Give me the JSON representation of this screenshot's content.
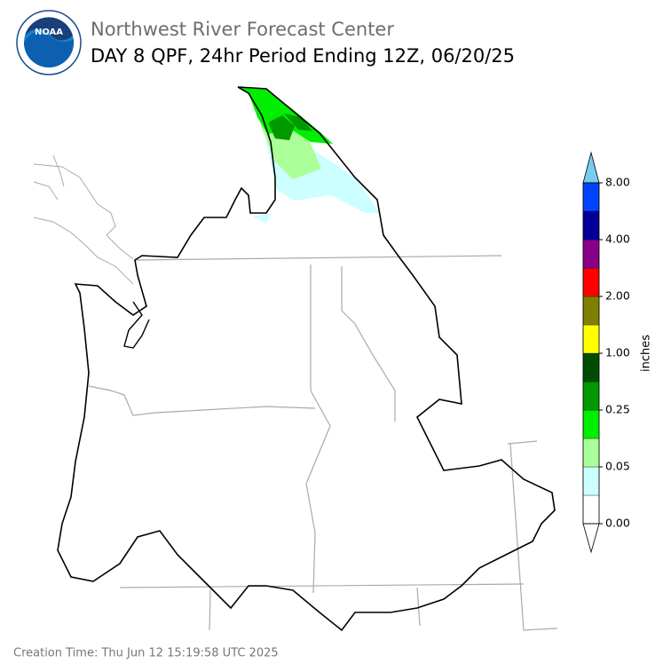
{
  "header": {
    "org": "Northwest River Forecast Center",
    "title": "DAY 8 QPF, 24hr Period Ending 12Z, 06/20/25",
    "logo_text": "NOAA"
  },
  "colorbar": {
    "label": "inches",
    "colors": [
      "#ffffff",
      "#ccffff",
      "#aaff99",
      "#00ee00",
      "#009900",
      "#004d00",
      "#ffff00",
      "#808000",
      "#ff0000",
      "#880088",
      "#000099",
      "#0044ff"
    ],
    "over_color": "#77ccee",
    "under_color": "#ffffff",
    "ticks": [
      {
        "value": 0,
        "label": "0.00"
      },
      {
        "value": 0.05,
        "label": "0.05"
      },
      {
        "value": 0.25,
        "label": "0.25"
      },
      {
        "value": 1,
        "label": "1.00"
      },
      {
        "value": 2,
        "label": "2.00"
      },
      {
        "value": 4,
        "label": "4.00"
      },
      {
        "value": 8,
        "label": "8.00"
      }
    ]
  },
  "footer": {
    "creation_time": "Creation Time: Thu Jun 12 15:19:58 UTC 2025"
  }
}
